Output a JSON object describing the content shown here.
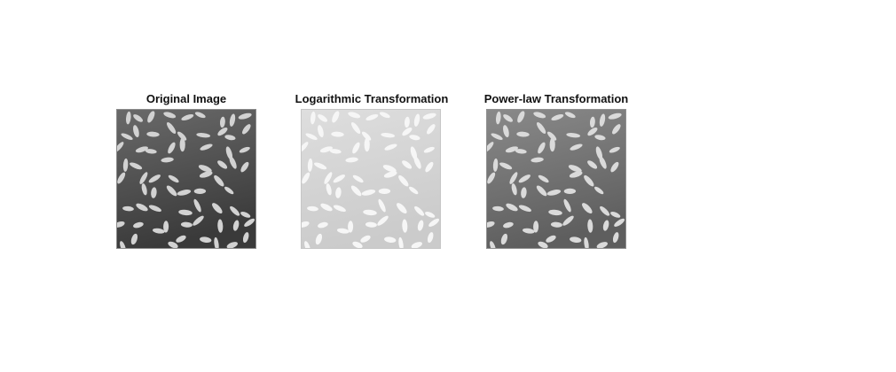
{
  "figure": {
    "panels": [
      {
        "title": "Original Image",
        "bg_top": "#6a6a6a",
        "bg_bottom": "#3a3a3a",
        "grain_color": "#d2d2d2",
        "border": "#8c8c8c"
      },
      {
        "title": "Logarithmic Transformation",
        "bg_top": "#dedede",
        "bg_bottom": "#cbcbcb",
        "grain_color": "#f6f6f6",
        "border": "#c6c6c6"
      },
      {
        "title": "Power-law Transformation",
        "bg_top": "#8a8a8a",
        "bg_bottom": "#5e5e5e",
        "grain_color": "#dadada",
        "border": "#909090"
      }
    ]
  }
}
